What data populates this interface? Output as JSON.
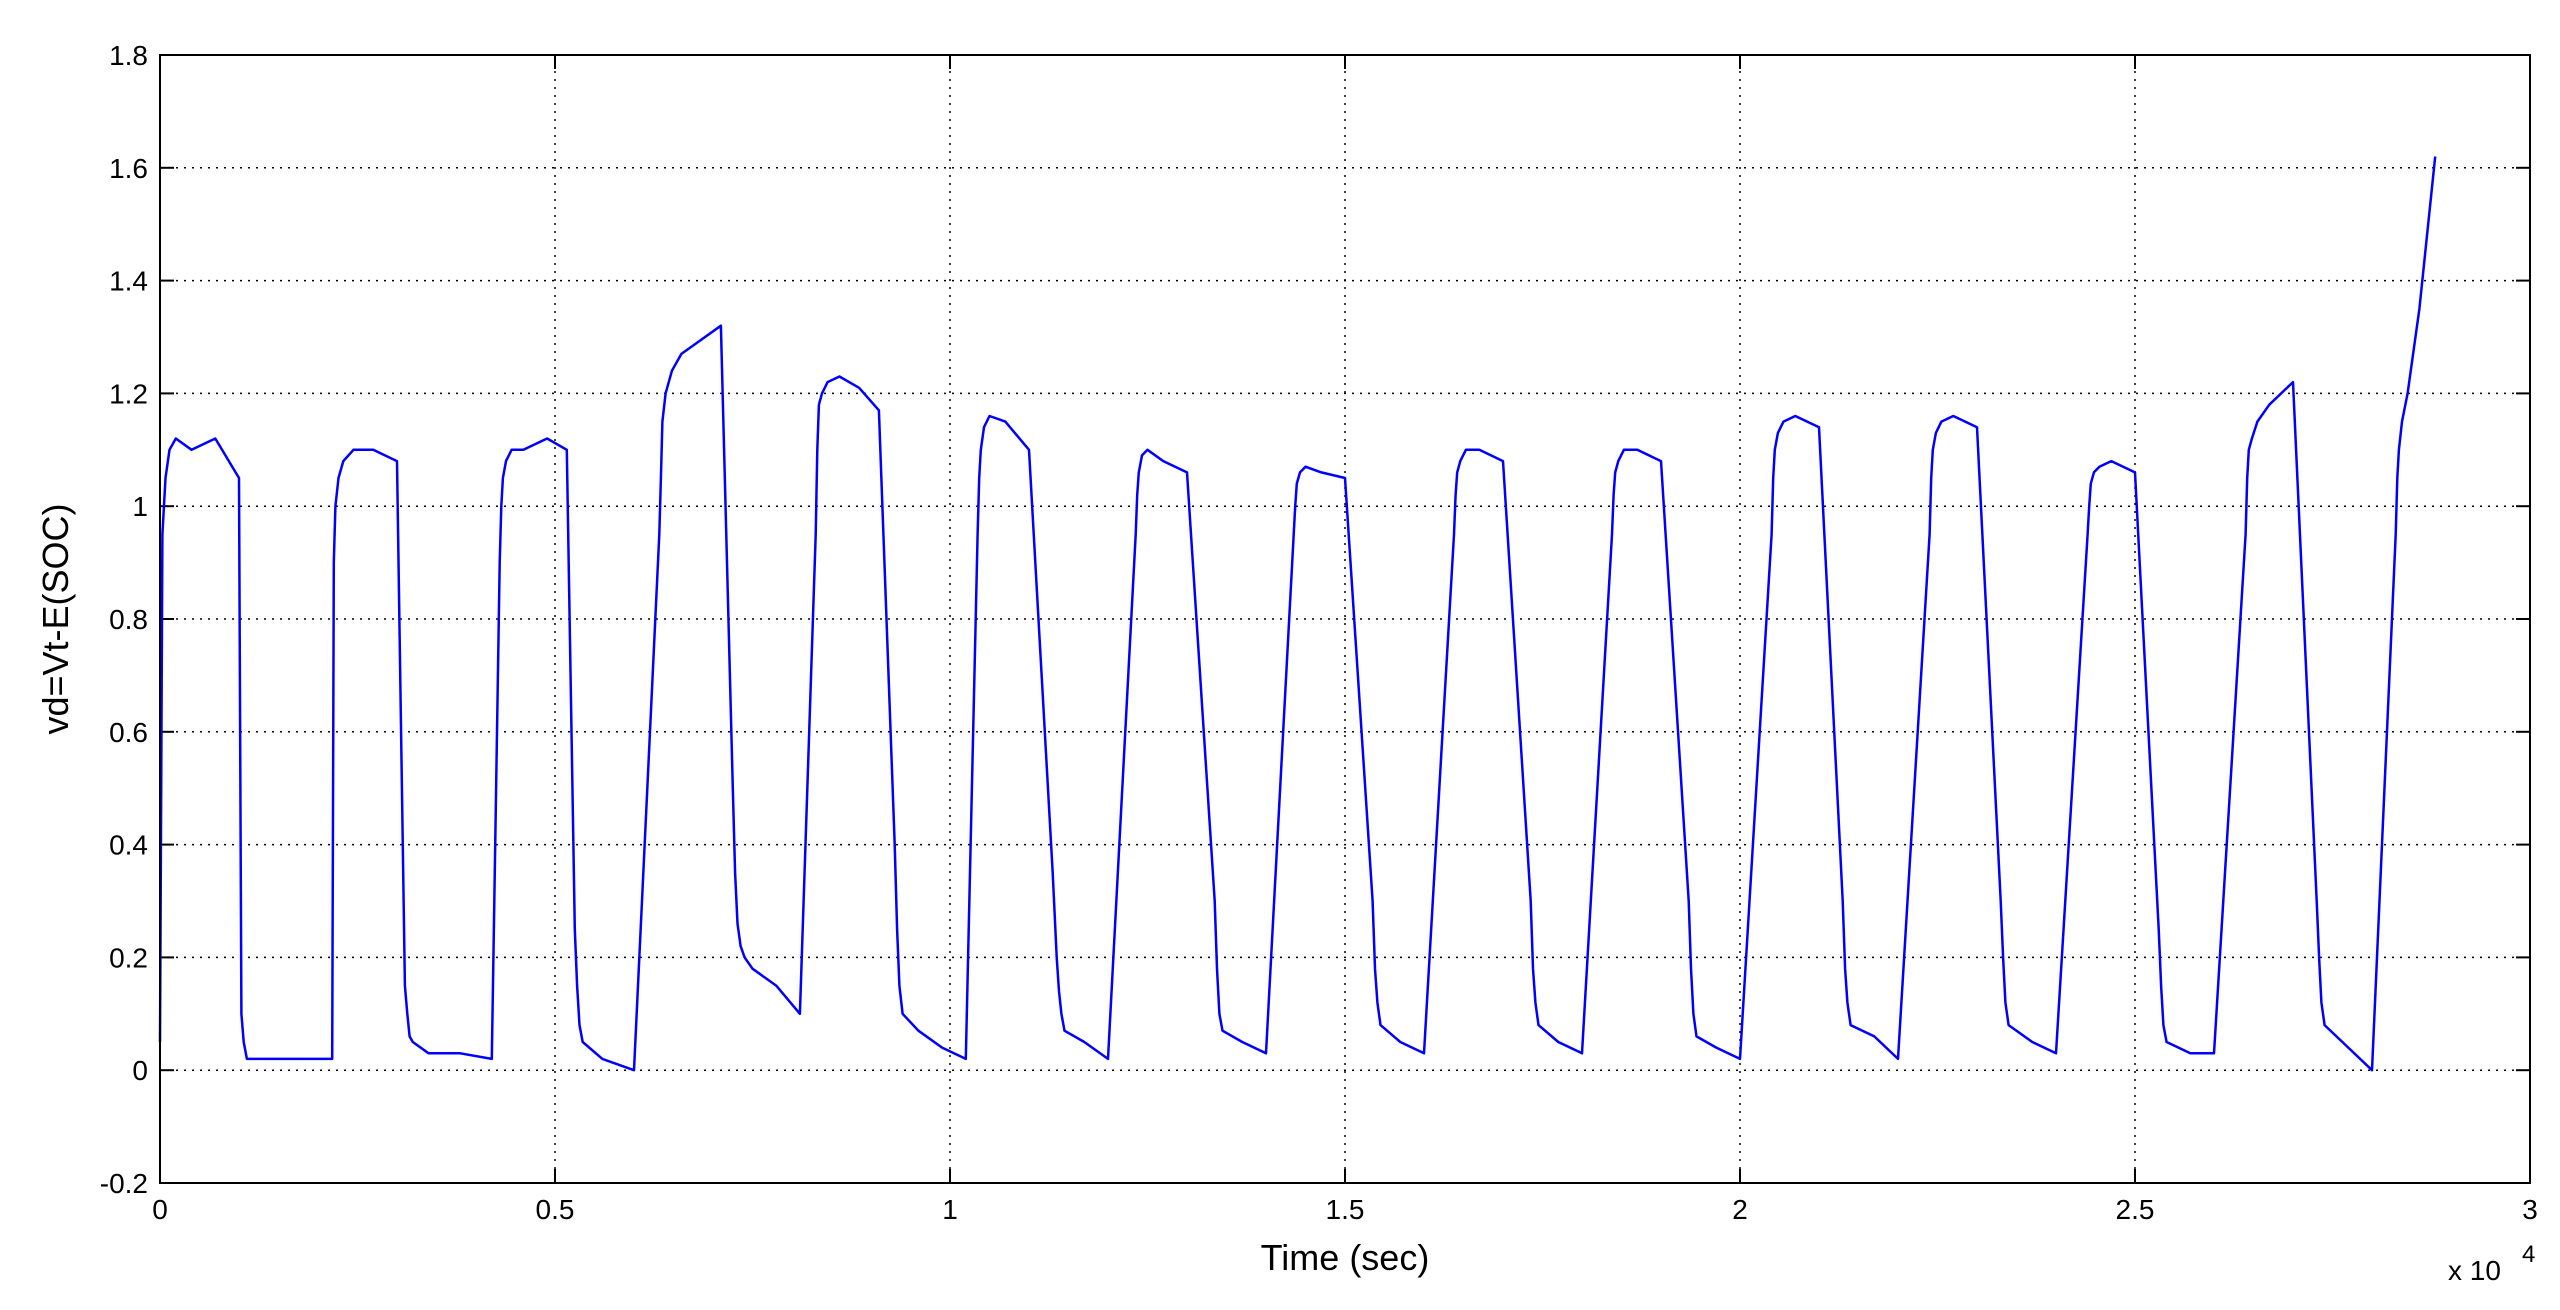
{
  "chart_data": {
    "type": "line",
    "title": "",
    "xlabel": "Time (sec)",
    "ylabel": "vd=Vt-E(SOC)",
    "x_exponent_label": "x 10",
    "x_exponent_power": "4",
    "xlim": [
      0,
      3
    ],
    "ylim": [
      -0.2,
      1.8
    ],
    "x_ticks": [
      0,
      0.5,
      1,
      1.5,
      2,
      2.5,
      3
    ],
    "x_tick_labels": [
      "0",
      "0.5",
      "1",
      "1.5",
      "2",
      "2.5",
      "3"
    ],
    "y_ticks": [
      -0.2,
      0,
      0.2,
      0.4,
      0.6,
      0.8,
      1,
      1.2,
      1.4,
      1.6,
      1.8
    ],
    "y_tick_labels": [
      "-0.2",
      "0",
      "0.2",
      "0.4",
      "0.6",
      "0.8",
      "1",
      "1.2",
      "1.4",
      "1.6",
      "1.8"
    ],
    "grid": true,
    "line_color": "#0000ff",
    "series": [
      {
        "x": [
          0,
          0.003,
          0.007,
          0.012,
          0.02,
          0.04,
          0.07,
          0.1,
          0.103,
          0.106,
          0.11,
          0.13,
          0.16,
          0.2,
          0.218,
          0.22,
          0.222,
          0.226,
          0.232,
          0.245,
          0.27,
          0.3,
          0.31,
          0.313,
          0.316,
          0.32,
          0.34,
          0.38,
          0.42,
          0.43,
          0.432,
          0.434,
          0.438,
          0.445,
          0.46,
          0.49,
          0.515,
          0.525,
          0.528,
          0.531,
          0.535,
          0.56,
          0.6,
          0.632,
          0.634,
          0.636,
          0.64,
          0.648,
          0.66,
          0.68,
          0.71,
          0.725,
          0.728,
          0.731,
          0.735,
          0.74,
          0.75,
          0.78,
          0.81,
          0.83,
          0.832,
          0.834,
          0.838,
          0.845,
          0.86,
          0.885,
          0.91,
          0.93,
          0.933,
          0.936,
          0.94,
          0.96,
          0.99,
          1.02,
          1.035,
          1.037,
          1.039,
          1.043,
          1.05,
          1.07,
          1.1,
          1.13,
          1.135,
          1.138,
          1.141,
          1.145,
          1.17,
          1.2,
          1.235,
          1.237,
          1.239,
          1.243,
          1.25,
          1.27,
          1.3,
          1.335,
          1.338,
          1.341,
          1.345,
          1.37,
          1.4,
          1.435,
          1.437,
          1.439,
          1.443,
          1.45,
          1.47,
          1.5,
          1.535,
          1.538,
          1.541,
          1.545,
          1.57,
          1.6,
          1.638,
          1.64,
          1.642,
          1.646,
          1.653,
          1.67,
          1.7,
          1.735,
          1.738,
          1.741,
          1.745,
          1.77,
          1.8,
          1.838,
          1.84,
          1.842,
          1.846,
          1.853,
          1.87,
          1.9,
          1.935,
          1.938,
          1.941,
          1.945,
          1.97,
          2.0,
          2.04,
          2.042,
          2.044,
          2.048,
          2.055,
          2.07,
          2.1,
          2.13,
          2.133,
          2.136,
          2.14,
          2.17,
          2.2,
          2.24,
          2.242,
          2.244,
          2.248,
          2.255,
          2.27,
          2.3,
          2.33,
          2.333,
          2.336,
          2.34,
          2.37,
          2.4,
          2.44,
          2.442,
          2.444,
          2.448,
          2.455,
          2.47,
          2.5,
          2.53,
          2.533,
          2.536,
          2.54,
          2.57,
          2.6,
          2.64,
          2.642,
          2.644,
          2.648,
          2.655,
          2.67,
          2.7,
          2.73,
          2.733,
          2.736,
          2.74,
          2.77,
          2.8,
          2.83,
          2.832,
          2.834,
          2.838,
          2.845,
          2.86,
          2.88
        ],
        "y": [
          0.05,
          0.95,
          1.05,
          1.1,
          1.12,
          1.1,
          1.12,
          1.05,
          0.1,
          0.05,
          0.02,
          0.02,
          0.02,
          0.02,
          0.02,
          0.9,
          1.0,
          1.05,
          1.08,
          1.1,
          1.1,
          1.08,
          0.15,
          0.1,
          0.06,
          0.05,
          0.03,
          0.03,
          0.02,
          0.9,
          1.0,
          1.05,
          1.08,
          1.1,
          1.1,
          1.12,
          1.1,
          0.25,
          0.15,
          0.08,
          0.05,
          0.02,
          0.0,
          0.95,
          1.05,
          1.15,
          1.2,
          1.24,
          1.27,
          1.29,
          1.32,
          0.5,
          0.35,
          0.26,
          0.22,
          0.2,
          0.18,
          0.15,
          0.1,
          0.95,
          1.1,
          1.18,
          1.2,
          1.22,
          1.23,
          1.21,
          1.17,
          0.4,
          0.25,
          0.15,
          0.1,
          0.07,
          0.04,
          0.02,
          0.95,
          1.05,
          1.1,
          1.14,
          1.16,
          1.15,
          1.1,
          0.35,
          0.2,
          0.14,
          0.1,
          0.07,
          0.05,
          0.02,
          0.95,
          1.02,
          1.06,
          1.09,
          1.1,
          1.08,
          1.06,
          0.3,
          0.18,
          0.1,
          0.07,
          0.05,
          0.03,
          0.95,
          1.0,
          1.04,
          1.06,
          1.07,
          1.06,
          1.05,
          0.3,
          0.18,
          0.12,
          0.08,
          0.05,
          0.03,
          0.95,
          1.02,
          1.06,
          1.08,
          1.1,
          1.1,
          1.08,
          0.3,
          0.18,
          0.12,
          0.08,
          0.05,
          0.03,
          0.95,
          1.02,
          1.06,
          1.08,
          1.1,
          1.1,
          1.08,
          0.3,
          0.18,
          0.1,
          0.06,
          0.04,
          0.02,
          0.95,
          1.05,
          1.1,
          1.13,
          1.15,
          1.16,
          1.14,
          0.3,
          0.18,
          0.12,
          0.08,
          0.06,
          0.02,
          0.95,
          1.05,
          1.1,
          1.13,
          1.15,
          1.16,
          1.14,
          0.3,
          0.2,
          0.12,
          0.08,
          0.05,
          0.03,
          0.95,
          1.0,
          1.04,
          1.06,
          1.07,
          1.08,
          1.06,
          0.25,
          0.15,
          0.08,
          0.05,
          0.03,
          0.03,
          0.95,
          1.05,
          1.1,
          1.12,
          1.15,
          1.18,
          1.22,
          0.3,
          0.2,
          0.12,
          0.08,
          0.04,
          0.0,
          0.95,
          1.05,
          1.1,
          1.15,
          1.2,
          1.35,
          1.62
        ]
      }
    ]
  }
}
